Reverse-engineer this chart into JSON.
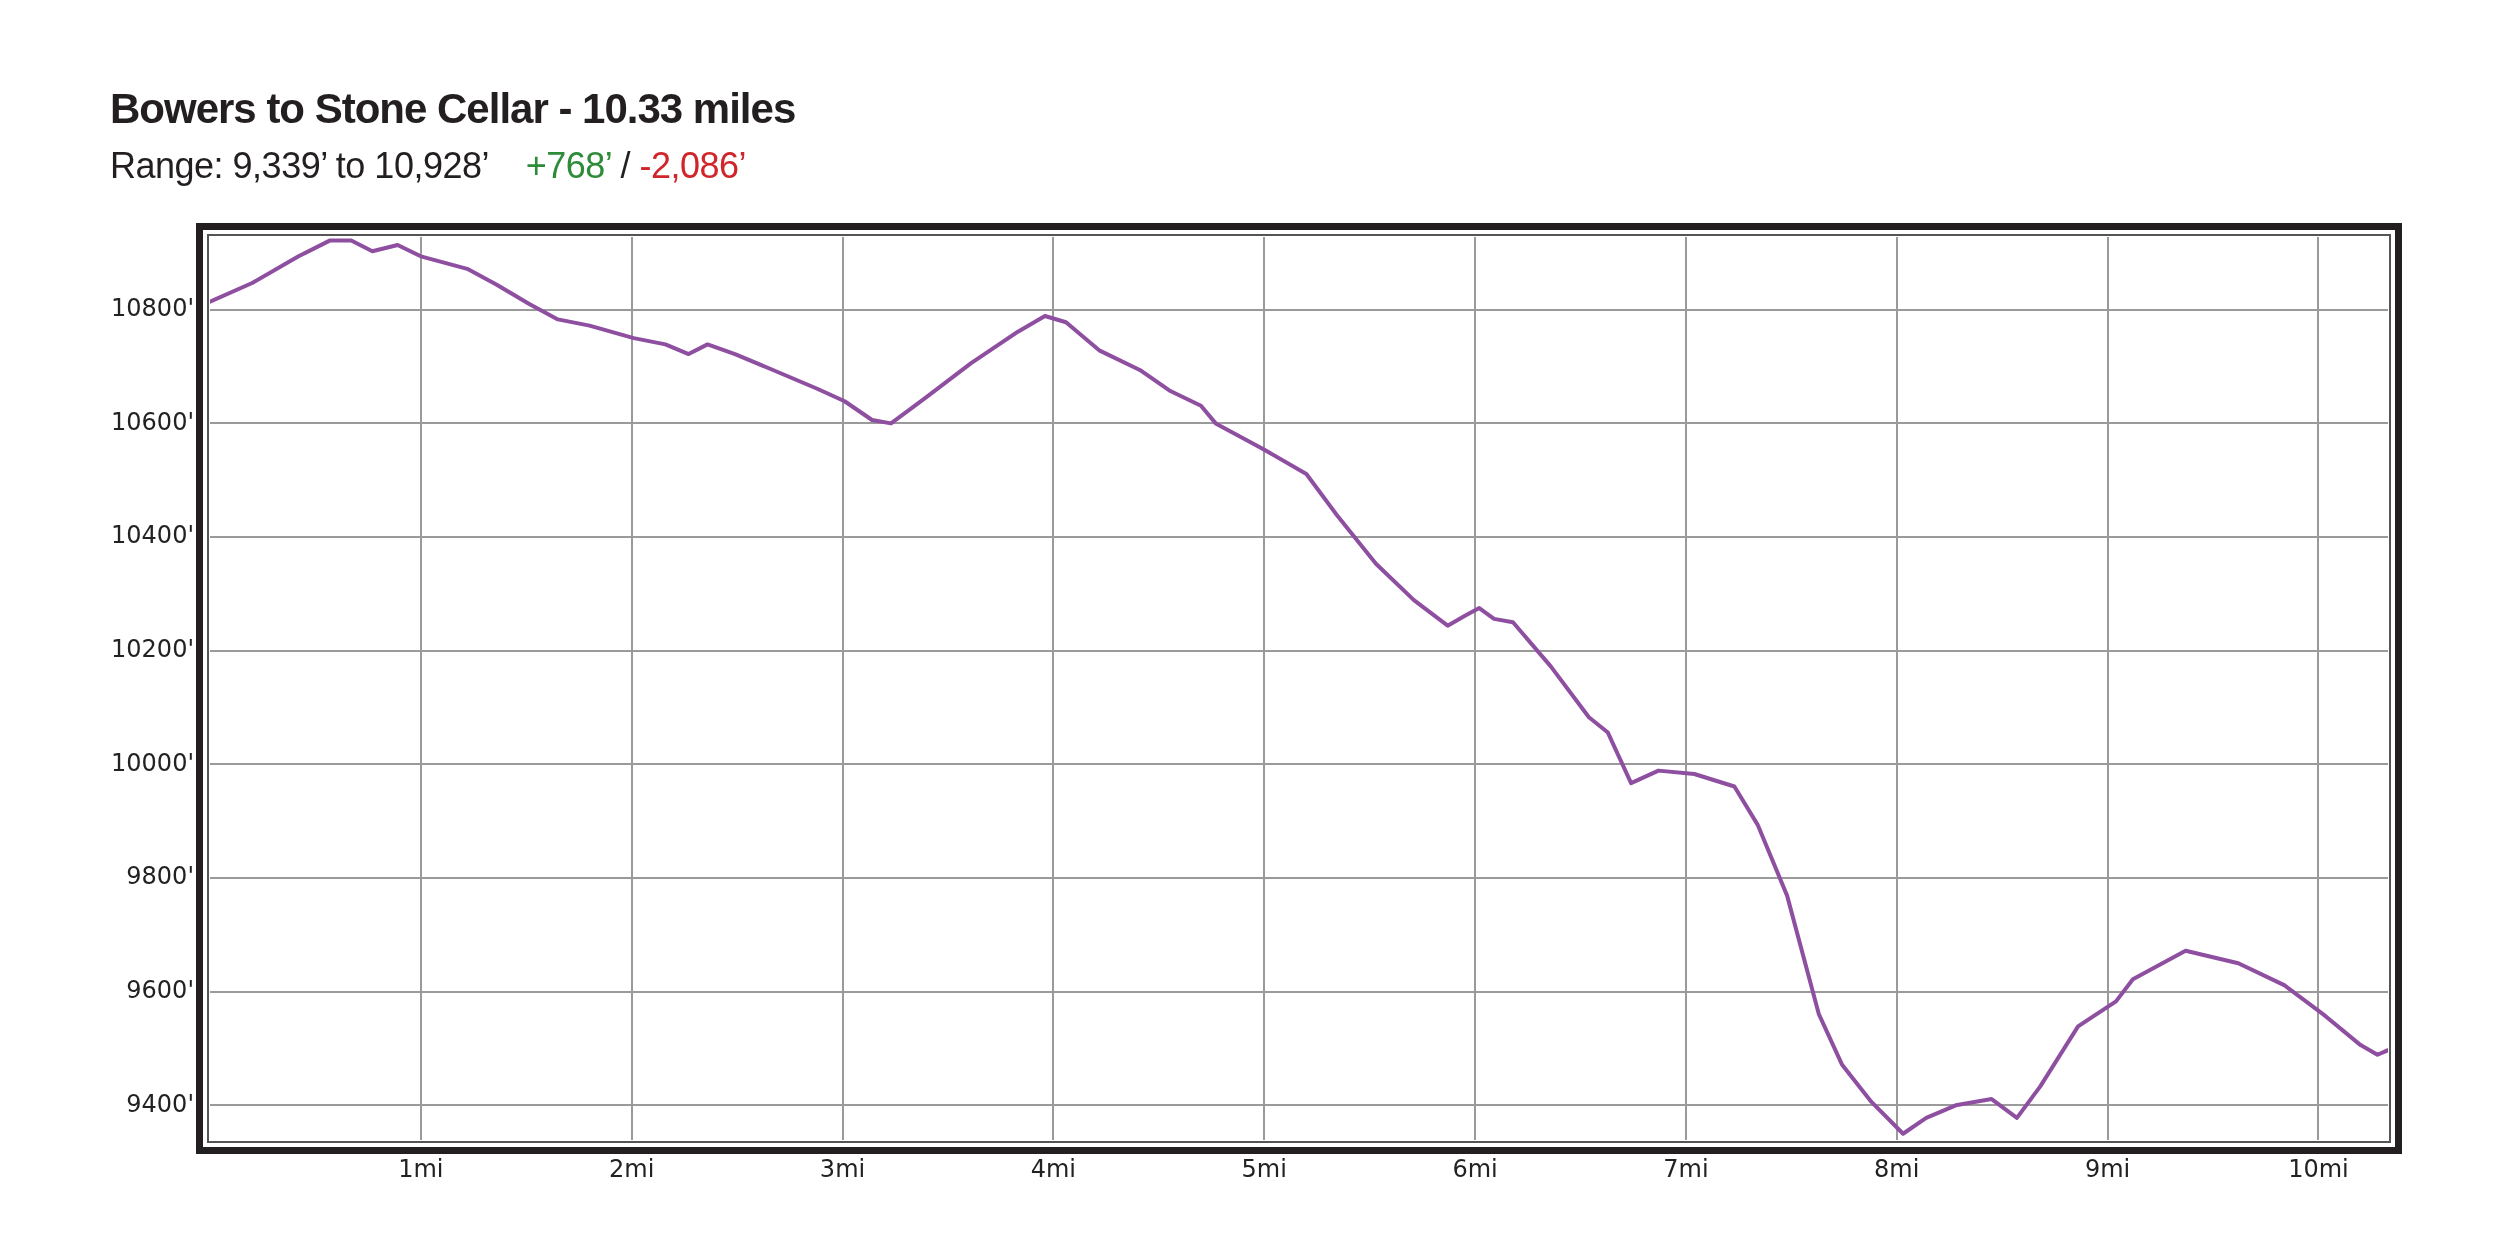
{
  "chart_data": {
    "type": "line",
    "title": "Bowers to Stone Cellar - 10.33 miles",
    "subtitle": "Range: 9,339’ to 10,928’",
    "annotations": [
      "+768’",
      "/",
      "-2,086’"
    ],
    "x": [
      0,
      0.2,
      0.42,
      0.57,
      0.67,
      0.77,
      0.89,
      1.0,
      1.22,
      1.36,
      1.51,
      1.65,
      1.8,
      2.01,
      2.16,
      2.27,
      2.36,
      2.49,
      2.67,
      2.88,
      3.01,
      3.14,
      3.23,
      3.39,
      3.61,
      3.83,
      3.96,
      4.06,
      4.22,
      4.41,
      4.55,
      4.7,
      4.77,
      4.99,
      5.2,
      5.35,
      5.53,
      5.71,
      5.87,
      5.95,
      6.02,
      6.09,
      6.18,
      6.36,
      6.54,
      6.63,
      6.74,
      6.87,
      7.04,
      7.23,
      7.34,
      7.48,
      7.63,
      7.74,
      7.88,
      8.03,
      8.14,
      8.28,
      8.45,
      8.57,
      8.68,
      8.86,
      9.04,
      9.12,
      9.37,
      9.62,
      9.84,
      10.02,
      10.2,
      10.28,
      10.33
    ],
    "series": [
      {
        "color": "#8e4fa0",
        "values": [
          10814,
          10847,
          10894,
          10922,
          10922,
          10903,
          10914,
          10894,
          10872,
          10844,
          10811,
          10783,
          10772,
          10750,
          10739,
          10722,
          10739,
          10722,
          10694,
          10661,
          10639,
          10606,
          10600,
          10644,
          10706,
          10761,
          10789,
          10778,
          10728,
          10694,
          10658,
          10631,
          10600,
          10556,
          10511,
          10436,
          10353,
          10289,
          10244,
          10261,
          10275,
          10256,
          10250,
          10172,
          10083,
          10056,
          9967,
          9989,
          9983,
          9961,
          9894,
          9769,
          9561,
          9472,
          9406,
          9350,
          9378,
          9400,
          9411,
          9378,
          9433,
          9539,
          9583,
          9622,
          9672,
          9650,
          9611,
          9561,
          9506,
          9489,
          9497
        ]
      }
    ],
    "xlim": [
      0,
      10.33
    ],
    "ylim": [
      9339,
      10928
    ],
    "xticks": [
      {
        "value": 1,
        "label": "1mi"
      },
      {
        "value": 2,
        "label": "2mi"
      },
      {
        "value": 3,
        "label": "3mi"
      },
      {
        "value": 4,
        "label": "4mi"
      },
      {
        "value": 5,
        "label": "5mi"
      },
      {
        "value": 6,
        "label": "6mi"
      },
      {
        "value": 7,
        "label": "7mi"
      },
      {
        "value": 8,
        "label": "8mi"
      },
      {
        "value": 9,
        "label": "9mi"
      },
      {
        "value": 10,
        "label": "10mi"
      }
    ],
    "yticks": [
      {
        "value": 9400,
        "label": "9400'"
      },
      {
        "value": 9600,
        "label": "9600'"
      },
      {
        "value": 9800,
        "label": "9800'"
      },
      {
        "value": 10000,
        "label": "10000'"
      },
      {
        "value": 10200,
        "label": "10200'"
      },
      {
        "value": 10400,
        "label": "10400'"
      },
      {
        "value": 10600,
        "label": "10600'"
      },
      {
        "value": 10800,
        "label": "10800'"
      }
    ],
    "grid": true,
    "legend": false,
    "marker": "none",
    "line_style": "solid"
  }
}
